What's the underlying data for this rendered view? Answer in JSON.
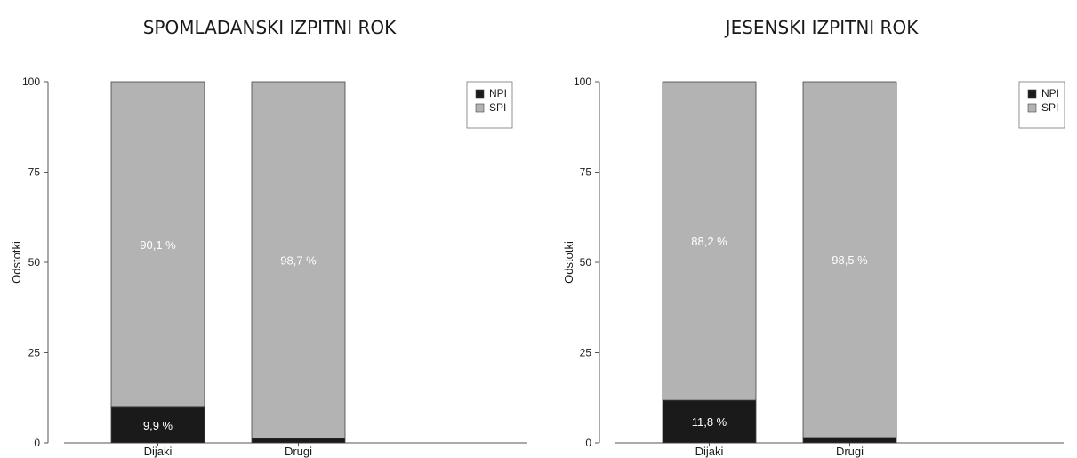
{
  "colors": {
    "NPI": "#1a1a1a",
    "SPI": "#b3b3b3",
    "axis": "#555555",
    "label_on_spi": "#ffffff",
    "label_on_npi": "#ffffff"
  },
  "chart_data": [
    {
      "type": "bar",
      "stacked": true,
      "title": "SPOMLADANSKI IZPITNI ROK",
      "ylabel": "Odstotki",
      "xlabel": "",
      "categories": [
        "Dijaki",
        "Drugi"
      ],
      "series": [
        {
          "name": "NPI",
          "values": [
            9.9,
            1.3
          ]
        },
        {
          "name": "SPI",
          "values": [
            90.1,
            98.7
          ]
        }
      ],
      "data_labels": [
        {
          "series": "NPI",
          "category": "Dijaki",
          "text": "9,9 %"
        },
        {
          "series": "SPI",
          "category": "Dijaki",
          "text": "90,1 %"
        },
        {
          "series": "SPI",
          "category": "Drugi",
          "text": "98,7 %"
        }
      ],
      "ylim": [
        0,
        100
      ],
      "yticks": [
        0,
        25,
        50,
        75,
        100
      ],
      "legend": {
        "position": "top-right",
        "entries": [
          "NPI",
          "SPI"
        ]
      },
      "grid": false
    },
    {
      "type": "bar",
      "stacked": true,
      "title": "JESENSKI IZPITNI ROK",
      "ylabel": "Odstotki",
      "xlabel": "",
      "categories": [
        "Dijaki",
        "Drugi"
      ],
      "series": [
        {
          "name": "NPI",
          "values": [
            11.8,
            1.5
          ]
        },
        {
          "name": "SPI",
          "values": [
            88.2,
            98.5
          ]
        }
      ],
      "data_labels": [
        {
          "series": "NPI",
          "category": "Dijaki",
          "text": "11,8 %"
        },
        {
          "series": "SPI",
          "category": "Dijaki",
          "text": "88,2 %"
        },
        {
          "series": "SPI",
          "category": "Drugi",
          "text": "98,5 %"
        }
      ],
      "ylim": [
        0,
        100
      ],
      "yticks": [
        0,
        25,
        50,
        75,
        100
      ],
      "legend": {
        "position": "top-right",
        "entries": [
          "NPI",
          "SPI"
        ]
      },
      "grid": false
    }
  ]
}
